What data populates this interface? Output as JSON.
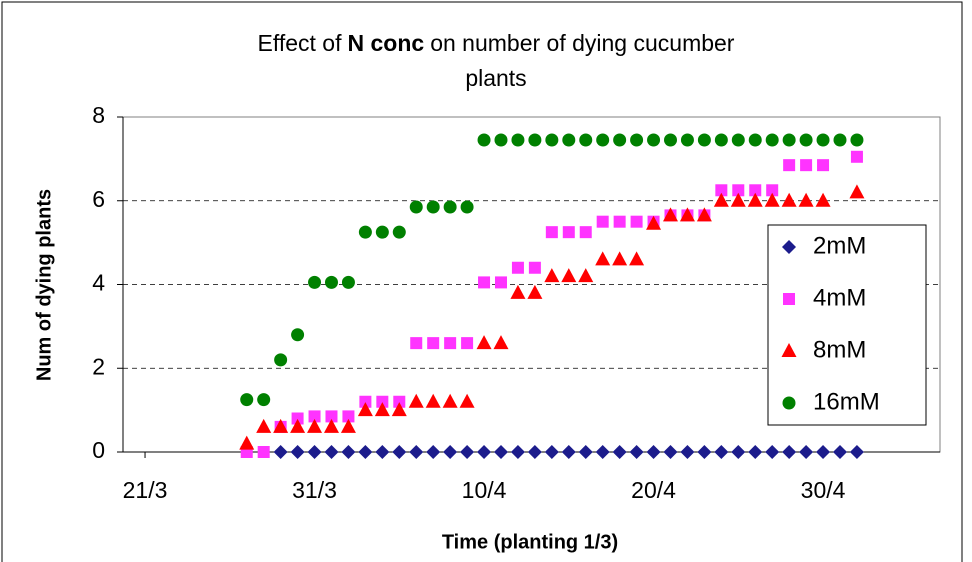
{
  "chart_data": {
    "type": "scatter",
    "title": {
      "parts": [
        "Effect of",
        "N conc",
        "on number of dying cucumber"
      ],
      "line2": "plants"
    },
    "x_label": "Time (planting 1/3)",
    "y_label": "Num of dying plants",
    "x": [
      86,
      87,
      88,
      89,
      90,
      91,
      92,
      93,
      94,
      95,
      96,
      97,
      98,
      99,
      100,
      101,
      102,
      103,
      104,
      105,
      106,
      107,
      108,
      109,
      110,
      111,
      112,
      113,
      114,
      115,
      116,
      117,
      118,
      119,
      120,
      121,
      122
    ],
    "series": [
      {
        "name": "2mM",
        "color": "#1c1c8c",
        "marker": "diamond",
        "values": [
          null,
          null,
          0,
          0,
          0,
          0,
          0,
          0,
          0,
          0,
          0,
          0,
          0,
          0,
          0,
          0,
          0,
          0,
          0,
          0,
          0,
          0,
          0,
          0,
          0,
          0,
          0,
          0,
          0,
          0,
          0,
          0,
          0,
          0,
          0,
          0,
          0
        ]
      },
      {
        "name": "4mM",
        "color": "#ff33ff",
        "marker": "square",
        "values": [
          0,
          0,
          0.6,
          0.8,
          0.85,
          0.85,
          0.85,
          1.2,
          1.2,
          1.2,
          2.6,
          2.6,
          2.6,
          2.6,
          4.05,
          4.05,
          4.4,
          4.4,
          5.25,
          5.25,
          5.25,
          5.5,
          5.5,
          5.5,
          5.5,
          5.65,
          5.65,
          5.65,
          6.25,
          6.25,
          6.25,
          6.25,
          6.85,
          6.85,
          6.85,
          null,
          7.05
        ]
      },
      {
        "name": "8mM",
        "color": "#ff0000",
        "marker": "triangle",
        "values": [
          0.2,
          0.6,
          0.6,
          0.6,
          0.6,
          0.6,
          0.6,
          1.0,
          1.0,
          1.0,
          1.2,
          1.2,
          1.2,
          1.2,
          2.6,
          2.6,
          3.8,
          3.8,
          4.2,
          4.2,
          4.2,
          4.6,
          4.6,
          4.6,
          5.45,
          5.65,
          5.65,
          5.65,
          6.0,
          6.0,
          6.0,
          6.0,
          6.0,
          6.0,
          6.0,
          null,
          6.2
        ]
      },
      {
        "name": "16mM",
        "color": "#008000",
        "marker": "circle",
        "values": [
          1.25,
          1.25,
          2.2,
          2.8,
          4.05,
          4.05,
          4.05,
          5.25,
          5.25,
          5.25,
          5.85,
          5.85,
          5.85,
          5.85,
          7.45,
          7.45,
          7.45,
          7.45,
          7.45,
          7.45,
          7.45,
          7.45,
          7.45,
          7.45,
          7.45,
          7.45,
          7.45,
          7.45,
          7.45,
          7.45,
          7.45,
          7.45,
          7.45,
          7.45,
          7.45,
          7.45,
          7.45
        ]
      }
    ],
    "xlim": [
      78.7,
      126.9
    ],
    "xticks": [
      {
        "value": 80,
        "label": "21/3"
      },
      {
        "value": 90,
        "label": "31/3"
      },
      {
        "value": 100,
        "label": "10/4"
      },
      {
        "value": 110,
        "label": "20/4"
      },
      {
        "value": 120,
        "label": "30/4"
      }
    ],
    "ylim": [
      0,
      8
    ],
    "yticks": [
      0,
      2,
      4,
      6,
      8
    ],
    "grid": true,
    "legend": "right"
  }
}
